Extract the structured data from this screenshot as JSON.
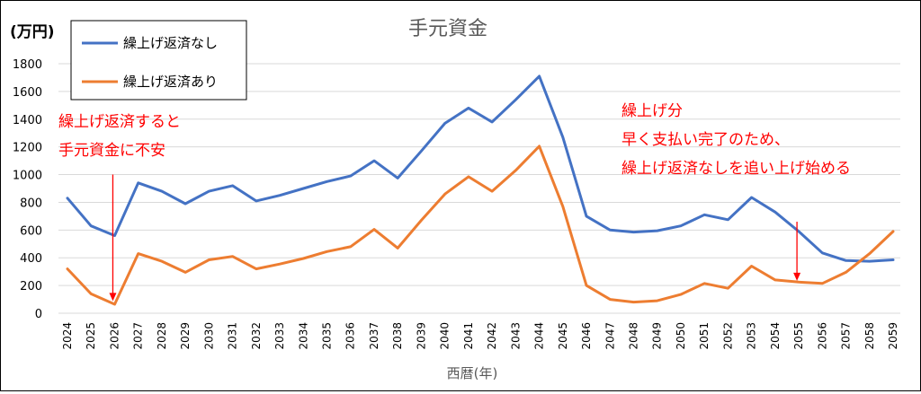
{
  "chart_data": {
    "type": "line",
    "title": "手元資金",
    "unit_label": "(万円)",
    "xlabel": "西暦(年)",
    "ylabel": "",
    "ylim": [
      0,
      1800
    ],
    "yticks": [
      0,
      200,
      400,
      600,
      800,
      1000,
      1200,
      1400,
      1600,
      1800
    ],
    "grid": "horizontal",
    "legend_position": "top-left",
    "categories": [
      "2024",
      "2025",
      "2026",
      "2027",
      "2028",
      "2029",
      "2030",
      "2031",
      "2032",
      "2033",
      "2034",
      "2035",
      "2036",
      "2037",
      "2038",
      "2039",
      "2040",
      "2041",
      "2042",
      "2043",
      "2044",
      "2045",
      "2046",
      "2047",
      "2048",
      "2049",
      "2050",
      "2051",
      "2052",
      "2053",
      "2054",
      "2055",
      "2056",
      "2057",
      "2058",
      "2059"
    ],
    "series": [
      {
        "name": "繰上げ返済なし",
        "color": "#4472C4",
        "values": [
          830,
          630,
          560,
          940,
          880,
          790,
          880,
          920,
          810,
          850,
          900,
          950,
          990,
          1100,
          975,
          1170,
          1370,
          1480,
          1380,
          1540,
          1710,
          1270,
          700,
          600,
          585,
          595,
          630,
          710,
          675,
          835,
          730,
          590,
          435,
          380,
          375,
          385
        ]
      },
      {
        "name": "繰上げ返済あり",
        "color": "#ED7D31",
        "values": [
          320,
          140,
          65,
          430,
          375,
          295,
          385,
          410,
          320,
          355,
          395,
          445,
          480,
          605,
          470,
          670,
          860,
          985,
          880,
          1030,
          1205,
          770,
          200,
          100,
          80,
          90,
          135,
          215,
          180,
          340,
          240,
          225,
          215,
          295,
          430,
          590
        ]
      }
    ],
    "annotations": [
      {
        "lines": [
          "繰上げ返済すると",
          "手元資金に不安"
        ],
        "color": "#FF0000",
        "arrow_category": "2026",
        "arrow_from": 1000,
        "arrow_to": 95
      },
      {
        "lines": [
          "繰上げ分",
          "早く支払い完了のため、",
          "繰上げ返済なしを追い上げ始める"
        ],
        "color": "#FF0000",
        "arrow_category": "2055",
        "arrow_from": 660,
        "arrow_to": 240
      }
    ]
  }
}
